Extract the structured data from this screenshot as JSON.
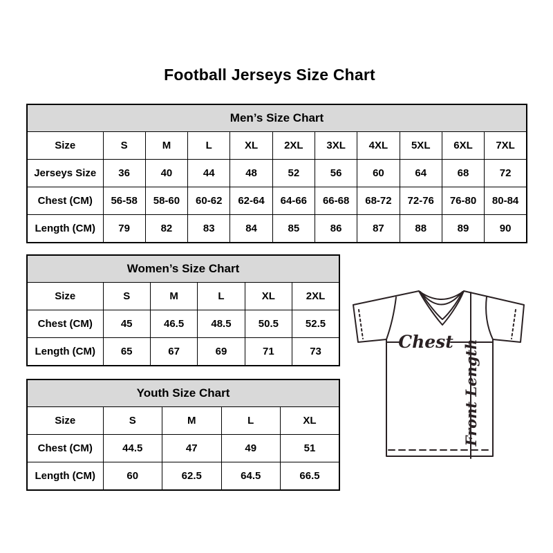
{
  "page": {
    "title": "Football Jerseys Size Chart"
  },
  "tables": [
    {
      "id": "mens",
      "title": "Men’s Size Chart",
      "rows": [
        [
          "Size",
          "S",
          "M",
          "L",
          "XL",
          "2XL",
          "3XL",
          "4XL",
          "5XL",
          "6XL",
          "7XL"
        ],
        [
          "Jerseys Size",
          "36",
          "40",
          "44",
          "48",
          "52",
          "56",
          "60",
          "64",
          "68",
          "72"
        ],
        [
          "Chest (CM)",
          "56-58",
          "58-60",
          "60-62",
          "62-64",
          "64-66",
          "66-68",
          "68-72",
          "72-76",
          "76-80",
          "80-84"
        ],
        [
          "Length (CM)",
          "79",
          "82",
          "83",
          "84",
          "85",
          "86",
          "87",
          "88",
          "89",
          "90"
        ]
      ]
    },
    {
      "id": "womens",
      "title": "Women’s Size Chart",
      "rows": [
        [
          "Size",
          "S",
          "M",
          "L",
          "XL",
          "2XL"
        ],
        [
          "Chest (CM)",
          "45",
          "46.5",
          "48.5",
          "50.5",
          "52.5"
        ],
        [
          "Length (CM)",
          "65",
          "67",
          "69",
          "71",
          "73"
        ]
      ]
    },
    {
      "id": "youth",
      "title": "Youth Size Chart",
      "rows": [
        [
          "Size",
          "S",
          "M",
          "L",
          "XL"
        ],
        [
          "Chest (CM)",
          "44.5",
          "47",
          "49",
          "51"
        ],
        [
          "Length (CM)",
          "60",
          "62.5",
          "64.5",
          "66.5"
        ]
      ]
    }
  ],
  "diagram": {
    "chest_label": "Chest",
    "front_length_label": "Front Length"
  },
  "colors": {
    "table_header_bg": "#d9d9d9",
    "table_border": "#000000",
    "text": "#000000",
    "jersey_line": "#2a2123",
    "background": "#ffffff"
  }
}
